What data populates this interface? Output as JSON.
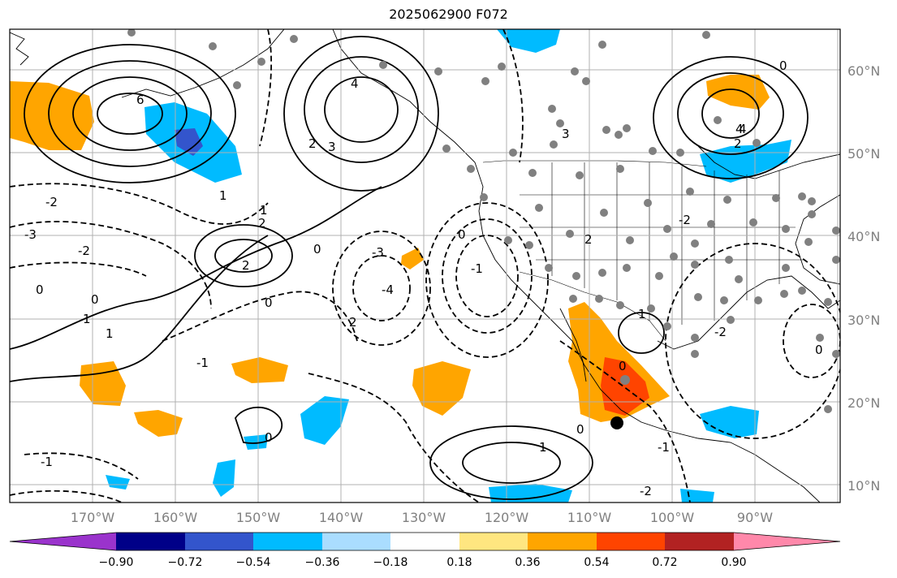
{
  "title": "2025062900 F072",
  "map": {
    "lat_labels": [
      "60°N",
      "50°N",
      "40°N",
      "30°N",
      "20°N",
      "10°N"
    ],
    "lon_labels": [
      "170°W",
      "160°W",
      "150°W",
      "140°W",
      "130°W",
      "120°W",
      "110°W",
      "100°W",
      "90°W"
    ],
    "contour_labels": [
      "6",
      "4",
      "3",
      "2",
      "1",
      "0",
      "-1",
      "-2",
      "-3",
      "4",
      "2",
      "1",
      "0",
      "2",
      "3",
      "0",
      "2",
      "-2",
      "1",
      "0",
      "-1",
      "-2",
      "-3",
      "-4",
      "-1",
      "0",
      "0",
      "1",
      "0",
      "-1",
      "-2",
      "1",
      "0",
      "4",
      "2",
      "0",
      "-2",
      "2",
      "1",
      "0"
    ]
  },
  "colorbar": {
    "colors": [
      "#9a33cc",
      "#000088",
      "#3355cc",
      "#00bbff",
      "#aaddff",
      "#ffffff",
      "#ffe680",
      "#ffa500",
      "#ff4400",
      "#b22222",
      "#ff88aa"
    ],
    "tick_labels": [
      "−0.90",
      "−0.72",
      "−0.54",
      "−0.36",
      "−0.18",
      "0.18",
      "0.36",
      "0.54",
      "0.72",
      "0.90"
    ]
  }
}
